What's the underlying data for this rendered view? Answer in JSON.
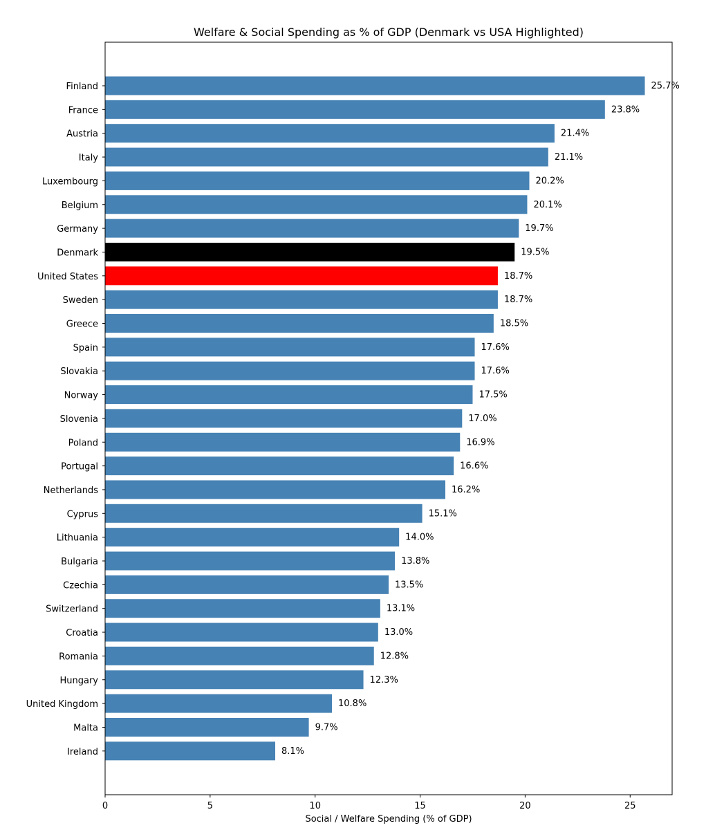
{
  "chart_data": {
    "type": "bar",
    "orientation": "horizontal",
    "title": "Welfare & Social Spending as % of GDP (Denmark vs USA Highlighted)",
    "xlabel": "Social / Welfare Spending (% of GDP)",
    "ylabel": "",
    "xlim": [
      0,
      27
    ],
    "xticks": [
      0,
      5,
      10,
      15,
      20,
      25
    ],
    "grid": false,
    "value_label_suffix": "%",
    "colors": {
      "default": "#4682b4",
      "highlight_denmark": "#000000",
      "highlight_usa": "#ff0000"
    },
    "categories": [
      "Finland",
      "France",
      "Austria",
      "Italy",
      "Luxembourg",
      "Belgium",
      "Germany",
      "Denmark",
      "United States",
      "Sweden",
      "Greece",
      "Spain",
      "Slovakia",
      "Norway",
      "Slovenia",
      "Poland",
      "Portugal",
      "Netherlands",
      "Cyprus",
      "Lithuania",
      "Bulgaria",
      "Czechia",
      "Switzerland",
      "Croatia",
      "Romania",
      "Hungary",
      "United Kingdom",
      "Malta",
      "Ireland"
    ],
    "values": [
      25.7,
      23.8,
      21.4,
      21.1,
      20.2,
      20.1,
      19.7,
      19.5,
      18.7,
      18.7,
      18.5,
      17.6,
      17.6,
      17.5,
      17.0,
      16.9,
      16.6,
      16.2,
      15.1,
      14.0,
      13.8,
      13.5,
      13.1,
      13.0,
      12.8,
      12.3,
      10.8,
      9.7,
      8.1
    ],
    "highlight": {
      "Denmark": "#000000",
      "United States": "#ff0000"
    }
  }
}
